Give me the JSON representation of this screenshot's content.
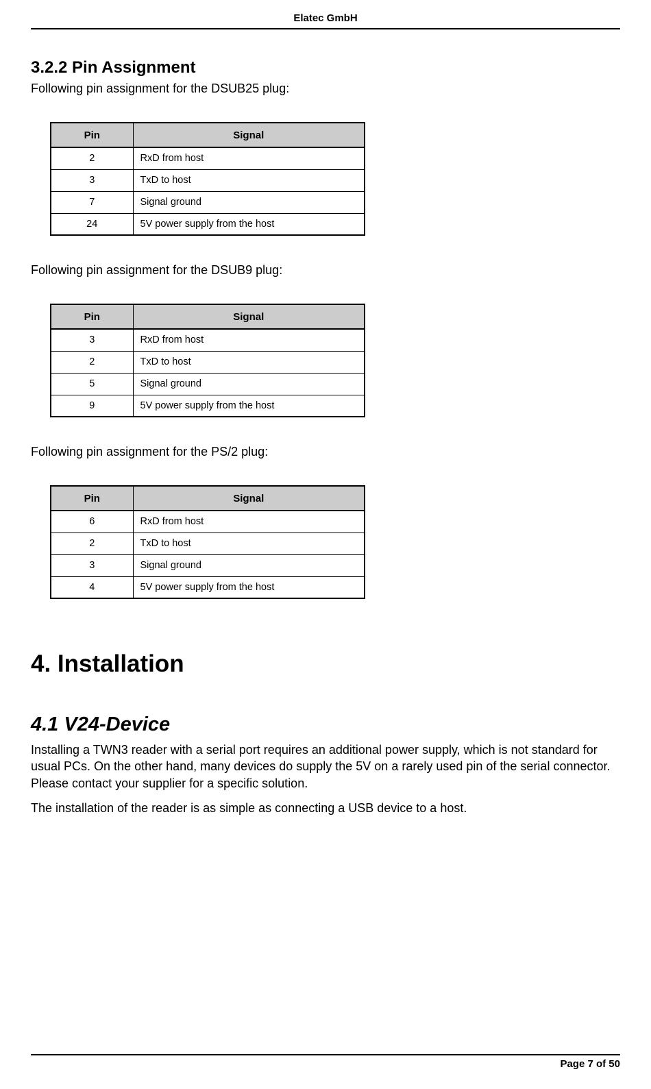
{
  "header": {
    "company": "Elatec GmbH"
  },
  "section322": {
    "title": "3.2.2  Pin Assignment",
    "intro1": "Following pin assignment for the DSUB25 plug:",
    "table1": {
      "headers": {
        "pin": "Pin",
        "signal": "Signal"
      },
      "rows": [
        {
          "pin": "2",
          "signal": "RxD from host"
        },
        {
          "pin": "3",
          "signal": "TxD to host"
        },
        {
          "pin": "7",
          "signal": "Signal ground"
        },
        {
          "pin": "24",
          "signal": "5V power supply from the host"
        }
      ]
    },
    "intro2": "Following pin assignment for the DSUB9 plug:",
    "table2": {
      "headers": {
        "pin": "Pin",
        "signal": "Signal"
      },
      "rows": [
        {
          "pin": "3",
          "signal": "RxD from host"
        },
        {
          "pin": "2",
          "signal": "TxD to host"
        },
        {
          "pin": "5",
          "signal": "Signal ground"
        },
        {
          "pin": "9",
          "signal": "5V power supply from the host"
        }
      ]
    },
    "intro3": "Following pin assignment for the PS/2 plug:",
    "table3": {
      "headers": {
        "pin": "Pin",
        "signal": "Signal"
      },
      "rows": [
        {
          "pin": "6",
          "signal": "RxD from host"
        },
        {
          "pin": "2",
          "signal": "TxD to host"
        },
        {
          "pin": "3",
          "signal": "Signal ground"
        },
        {
          "pin": "4",
          "signal": "5V power supply from the host"
        }
      ]
    }
  },
  "section4": {
    "title": "4. Installation",
    "section41": {
      "title": "4.1  V24-Device",
      "para1": "Installing a TWN3 reader with a serial port requires an additional power supply, which is not standard for usual PCs. On the other hand, many devices do supply the 5V on a rarely used pin of the serial connector. Please contact your supplier for a specific solution.",
      "para2": "The installation of the reader is as simple as connecting a USB device to a host."
    }
  },
  "footer": {
    "text": "Page 7 of 50"
  }
}
